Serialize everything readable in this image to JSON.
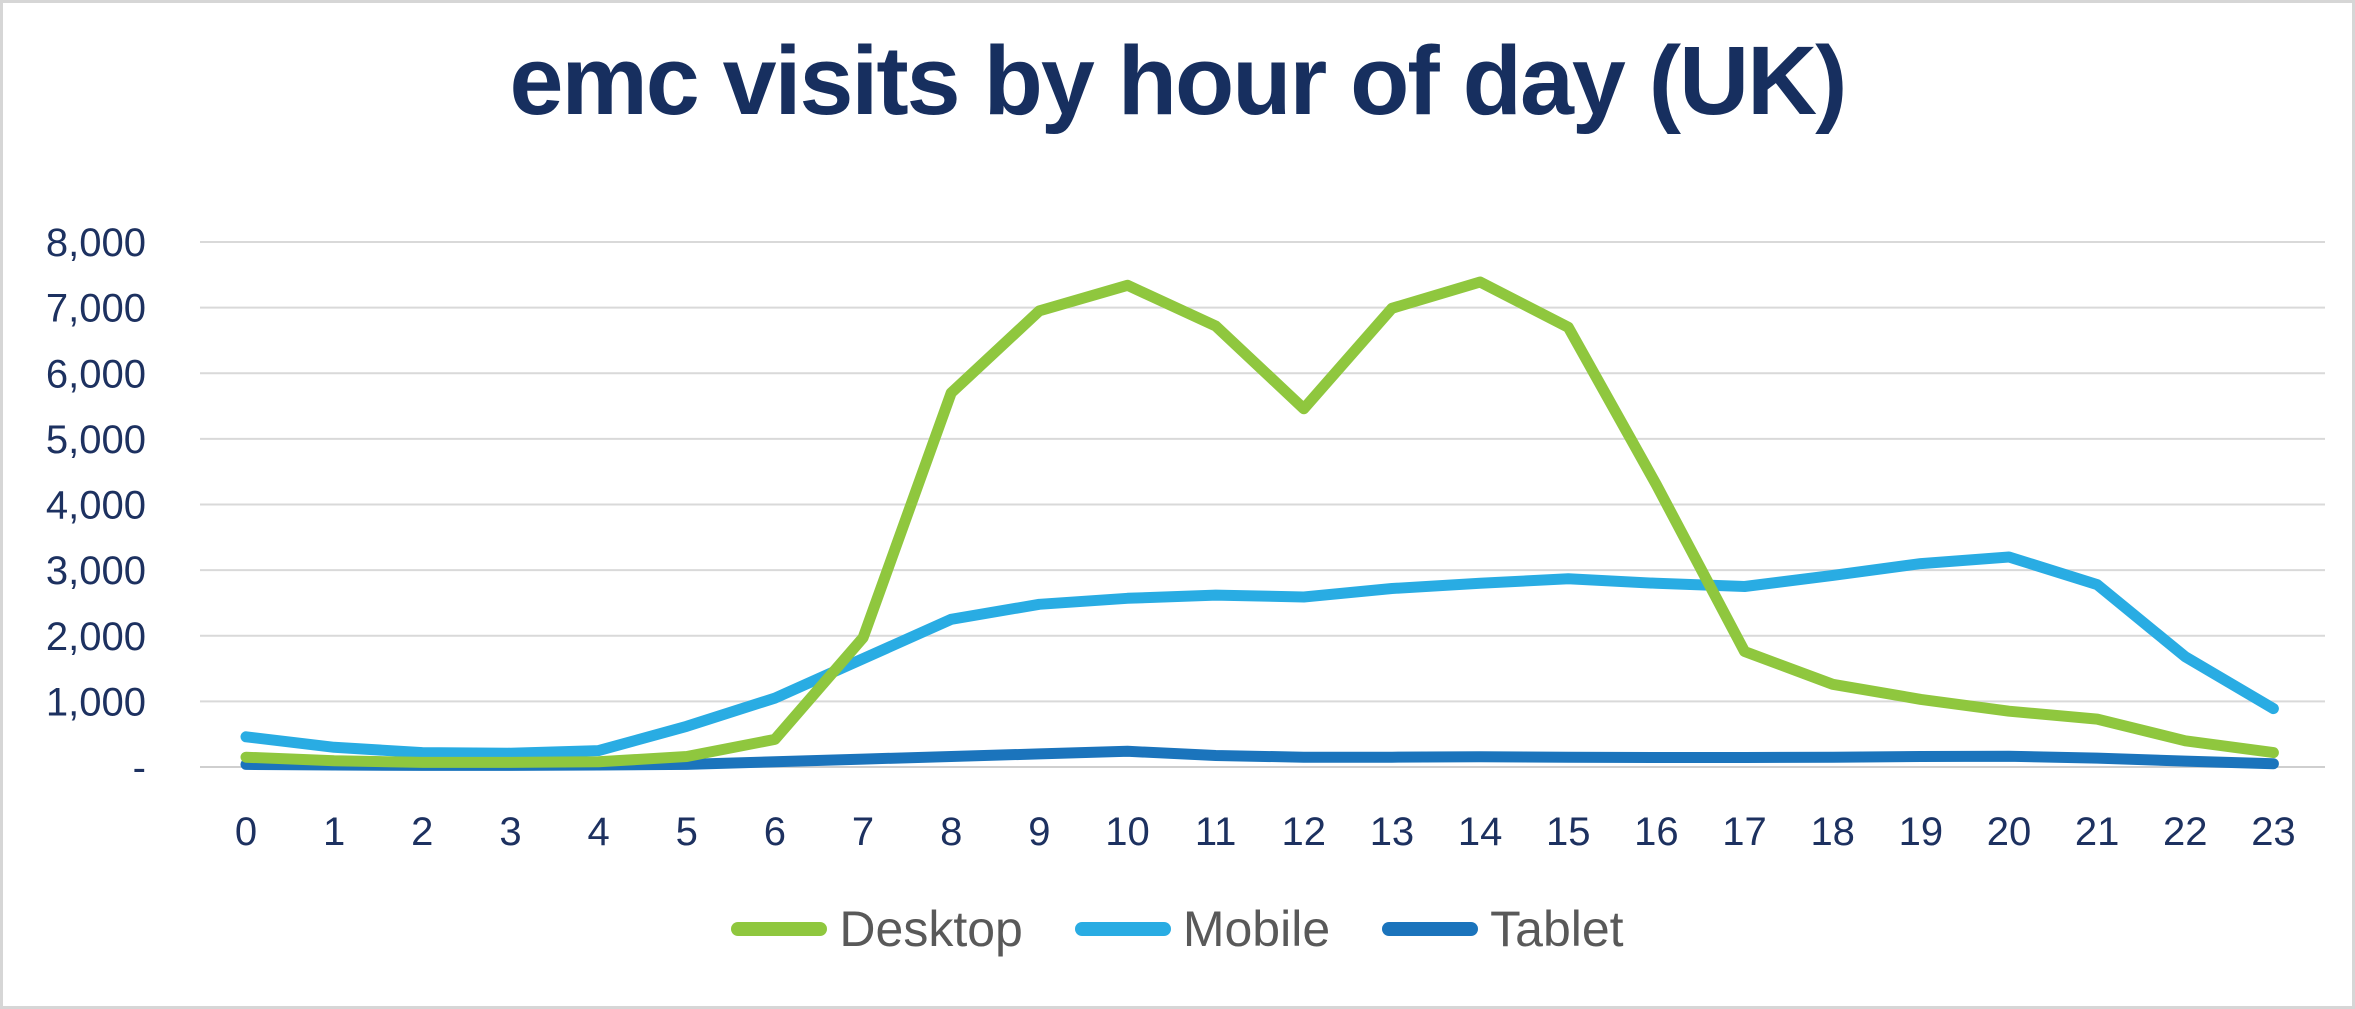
{
  "chart_data": {
    "type": "line",
    "title": "emc visits by hour of day (UK)",
    "xlabel": "",
    "ylabel": "",
    "ylim": [
      0,
      8000
    ],
    "grid": true,
    "legend_position": "bottom",
    "x": [
      0,
      1,
      2,
      3,
      4,
      5,
      6,
      7,
      8,
      9,
      10,
      11,
      12,
      13,
      14,
      15,
      16,
      17,
      18,
      19,
      20,
      21,
      22,
      23
    ],
    "x_tick_labels": [
      "0",
      "1",
      "2",
      "3",
      "4",
      "5",
      "6",
      "7",
      "8",
      "9",
      "10",
      "11",
      "12",
      "13",
      "14",
      "15",
      "16",
      "17",
      "18",
      "19",
      "20",
      "21",
      "22",
      "23"
    ],
    "y_ticks": [
      8000,
      7000,
      6000,
      5000,
      4000,
      3000,
      2000,
      1000,
      0
    ],
    "y_tick_labels": [
      "8,000",
      "7,000",
      "6,000",
      "5,000",
      "4,000",
      "3,000",
      "2,000",
      "1,000",
      "-"
    ],
    "series": [
      {
        "name": "Desktop",
        "color": "#8fc73e",
        "values": [
          150,
          95,
          70,
          70,
          80,
          160,
          420,
          1970,
          5700,
          6950,
          7340,
          6720,
          5460,
          6990,
          7390,
          6700,
          4300,
          1760,
          1260,
          1030,
          850,
          730,
          400,
          220
        ]
      },
      {
        "name": "Mobile",
        "color": "#29ace3",
        "values": [
          460,
          300,
          220,
          210,
          250,
          620,
          1050,
          1650,
          2250,
          2480,
          2570,
          2620,
          2590,
          2720,
          2800,
          2870,
          2800,
          2750,
          2920,
          3100,
          3200,
          2780,
          1680,
          890
        ]
      },
      {
        "name": "Tablet",
        "color": "#1b74bc",
        "values": [
          40,
          30,
          25,
          25,
          30,
          40,
          80,
          120,
          160,
          200,
          240,
          175,
          150,
          150,
          155,
          150,
          145,
          145,
          150,
          160,
          165,
          135,
          90,
          50
        ]
      }
    ]
  },
  "colors": {
    "title_text": "#172f5f",
    "axis_label_text": "#1d3160",
    "gridline": "#d9d9d9",
    "axis_line": "#cfcfcf",
    "legend_text": "#595959",
    "frame_border": "#d6d6d6",
    "background": "#ffffff"
  }
}
